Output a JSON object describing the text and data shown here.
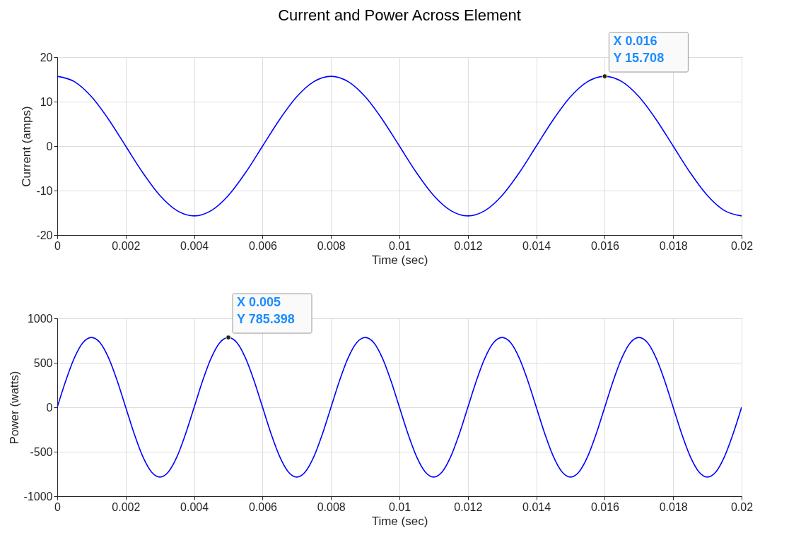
{
  "chart_data": [
    {
      "type": "line",
      "title": "Current and Power Across Element",
      "xlabel": "Time (sec)",
      "ylabel": "Current (amps)",
      "xlim": [
        0,
        0.02
      ],
      "xticks": [
        0,
        0.002,
        0.004,
        0.006,
        0.008,
        0.01,
        0.012,
        0.014,
        0.016,
        0.018,
        0.02
      ],
      "ylim": [
        -20,
        20
      ],
      "yticks": [
        -20,
        -10,
        0,
        10,
        20
      ],
      "grid": true,
      "line_style": "solid",
      "series": [
        {
          "color": "#0000ff",
          "x": [
            0,
            0.0005,
            0.001,
            0.0015,
            0.002,
            0.0025,
            0.003,
            0.0035,
            0.004,
            0.0045,
            0.005,
            0.0055,
            0.006,
            0.0065,
            0.007,
            0.0075,
            0.008,
            0.0085,
            0.009,
            0.0095,
            0.01,
            0.0105,
            0.011,
            0.0115,
            0.012,
            0.0125,
            0.013,
            0.0135,
            0.014,
            0.0145,
            0.015,
            0.0155,
            0.016,
            0.0165,
            0.017,
            0.0175,
            0.018,
            0.0185,
            0.019,
            0.0195,
            0.02
          ],
          "values": [
            15.7,
            14.5,
            11.1,
            6.0,
            0,
            -6.0,
            -11.1,
            -14.5,
            -15.7,
            -14.5,
            -11.1,
            -6.0,
            0,
            6.0,
            11.1,
            14.5,
            15.7,
            14.5,
            11.1,
            6.0,
            0,
            -6.0,
            -11.1,
            -14.5,
            -15.7,
            -14.5,
            -11.1,
            -6.0,
            0,
            6.0,
            11.1,
            14.5,
            15.7,
            14.5,
            11.1,
            6.0,
            0,
            -6.0,
            -11.1,
            -14.5,
            -15.7
          ]
        }
      ],
      "annotations": [
        {
          "text": "X 0.016\nY 15.708",
          "x": 0.016,
          "y": 15.708
        }
      ]
    },
    {
      "type": "line",
      "xlabel": "Time (sec)",
      "ylabel": "Power (watts)",
      "xlim": [
        0,
        0.02
      ],
      "xticks": [
        0,
        0.002,
        0.004,
        0.006,
        0.008,
        0.01,
        0.012,
        0.014,
        0.016,
        0.018,
        0.02
      ],
      "ylim": [
        -1000,
        1000
      ],
      "yticks": [
        -1000,
        -500,
        0,
        500,
        1000
      ],
      "grid": true,
      "line_style": "solid",
      "series": [
        {
          "color": "#0000ff",
          "x": [
            0,
            0.00025,
            0.0005,
            0.00075,
            0.001,
            0.00125,
            0.0015,
            0.00175,
            0.002,
            0.00225,
            0.0025,
            0.00275,
            0.003,
            0.00325,
            0.0035,
            0.00375,
            0.004,
            0.00425,
            0.0045,
            0.00475,
            0.005,
            0.00525,
            0.0055,
            0.00575,
            0.006,
            0.00625,
            0.0065,
            0.00675,
            0.007,
            0.00725,
            0.0075,
            0.00775,
            0.008,
            0.00825,
            0.0085,
            0.00875,
            0.009,
            0.00925,
            0.0095,
            0.00975,
            0.01,
            0.01025,
            0.0105,
            0.01075,
            0.011,
            0.01125,
            0.0115,
            0.01175,
            0.012,
            0.01225,
            0.0125,
            0.01275,
            0.013,
            0.01325,
            0.0135,
            0.01375,
            0.014,
            0.01425,
            0.0145,
            0.01475,
            0.015,
            0.01525,
            0.0155,
            0.01575,
            0.016,
            0.01625,
            0.0165,
            0.01675,
            0.017,
            0.01725,
            0.0175,
            0.01775,
            0.018,
            0.01825,
            0.0185,
            0.01875,
            0.019,
            0.01925,
            0.0195,
            0.01975,
            0.02
          ],
          "values": [
            0,
            300,
            555,
            726,
            785,
            726,
            555,
            300,
            0,
            -300,
            -555,
            -726,
            -785,
            -726,
            -555,
            -300,
            0,
            300,
            555,
            726,
            785,
            726,
            555,
            300,
            0,
            -300,
            -555,
            -726,
            -785,
            -726,
            -555,
            -300,
            0,
            300,
            555,
            726,
            785,
            726,
            555,
            300,
            0,
            -300,
            -555,
            -726,
            -785,
            -726,
            -555,
            -300,
            0,
            300,
            555,
            726,
            785,
            726,
            555,
            300,
            0,
            -300,
            -555,
            -726,
            -785,
            -726,
            -555,
            -300,
            0,
            300,
            555,
            726,
            785,
            726,
            555,
            300,
            0,
            -300,
            -555,
            -726,
            -785,
            -726,
            -555,
            -300,
            0
          ]
        }
      ],
      "annotations": [
        {
          "text": "X 0.005\nY 785.398",
          "x": 0.005,
          "y": 785.398
        }
      ]
    }
  ]
}
